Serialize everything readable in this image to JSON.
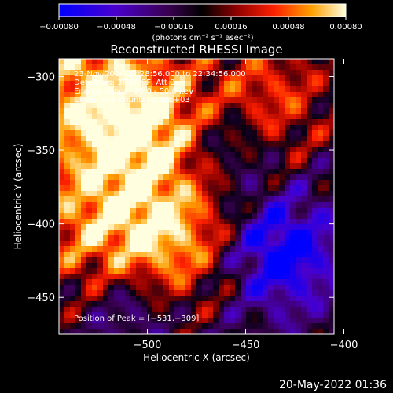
{
  "chart_data": {
    "type": "heatmap",
    "title": "Reconstructed RHESSI Image",
    "xlabel": "Heliocentric X (arcsec)",
    "ylabel": "Heliocentric Y (arcsec)",
    "xlim": [
      -545,
      -405
    ],
    "ylim": [
      -475,
      -288
    ],
    "x_ticks": [
      -500,
      -450,
      -400
    ],
    "y_ticks": [
      -300,
      -350,
      -400,
      -450
    ],
    "x_tick_labels": [
      "−500",
      "−450",
      "−400"
    ],
    "y_tick_labels": [
      "−300",
      "−350",
      "−400",
      "−450"
    ],
    "colorbar": {
      "range": [
        -0.0008,
        0.0008
      ],
      "tick_values": [
        -0.0008,
        -0.00048,
        -0.00016,
        0.00016,
        0.00048,
        0.0008
      ],
      "tick_labels": [
        "−0.00080",
        "−0.00048",
        "−0.00016",
        "0.00016",
        "0.00048",
        "0.00080"
      ],
      "unit_label": "(photons cm⁻² s⁻¹ asec⁻²)"
    },
    "annotations": {
      "time_range": "23-Nov-2014 22:28:56.000 to 22:34:56.000",
      "detectors": "Detectors: 3F 6F 9F, Att 0",
      "energy": "Energy Range: 25.0 - 50.0 keV",
      "method": "Clean    Total counts: 5.91E+03",
      "peak": "Position of Peak = [−531,−309]"
    },
    "peak_position": [
      -531,
      -309
    ],
    "colors": {
      "background": "#000000",
      "text": "#ffffff"
    }
  },
  "footer": {
    "date": "20-May-2022 01:36"
  }
}
